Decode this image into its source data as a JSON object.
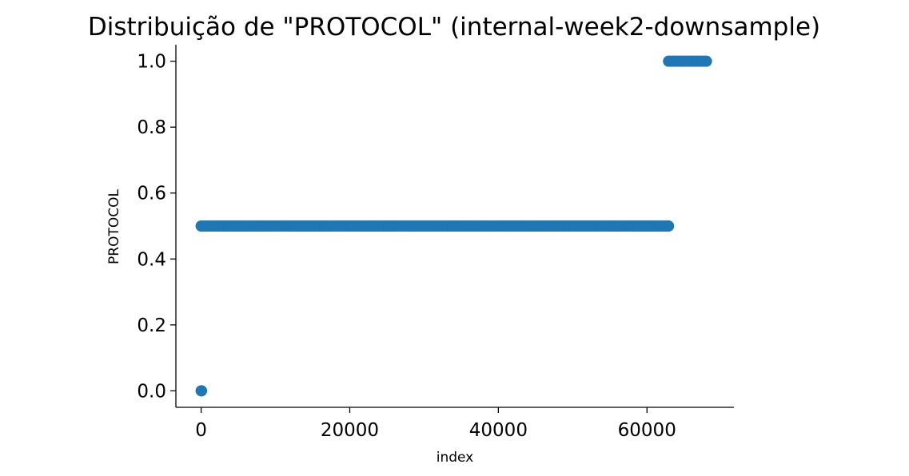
{
  "chart_data": {
    "type": "scatter",
    "title": "Distribuição de \"PROTOCOL\" (internal-week2-downsample)",
    "xlabel": "index",
    "ylabel": "PROTOCOL",
    "xlim": [
      -3400,
      71700
    ],
    "ylim": [
      -0.05,
      1.05
    ],
    "xticks": [
      0,
      20000,
      40000,
      60000
    ],
    "xtick_labels": [
      "0",
      "20000",
      "40000",
      "60000"
    ],
    "yticks": [
      0.0,
      0.2,
      0.4,
      0.6,
      0.8,
      1.0
    ],
    "ytick_labels": [
      "0.0",
      "0.2",
      "0.4",
      "0.6",
      "0.8",
      "1.0"
    ],
    "grid": false,
    "spines": [
      "left",
      "bottom"
    ],
    "marker_color": "#1f77b4",
    "segments": [
      {
        "x_start": 0,
        "x_end": 50,
        "y": 0.0
      },
      {
        "x_start": 0,
        "x_end": 62900,
        "y": 0.5
      },
      {
        "x_start": 62900,
        "x_end": 68000,
        "y": 1.0
      }
    ]
  }
}
